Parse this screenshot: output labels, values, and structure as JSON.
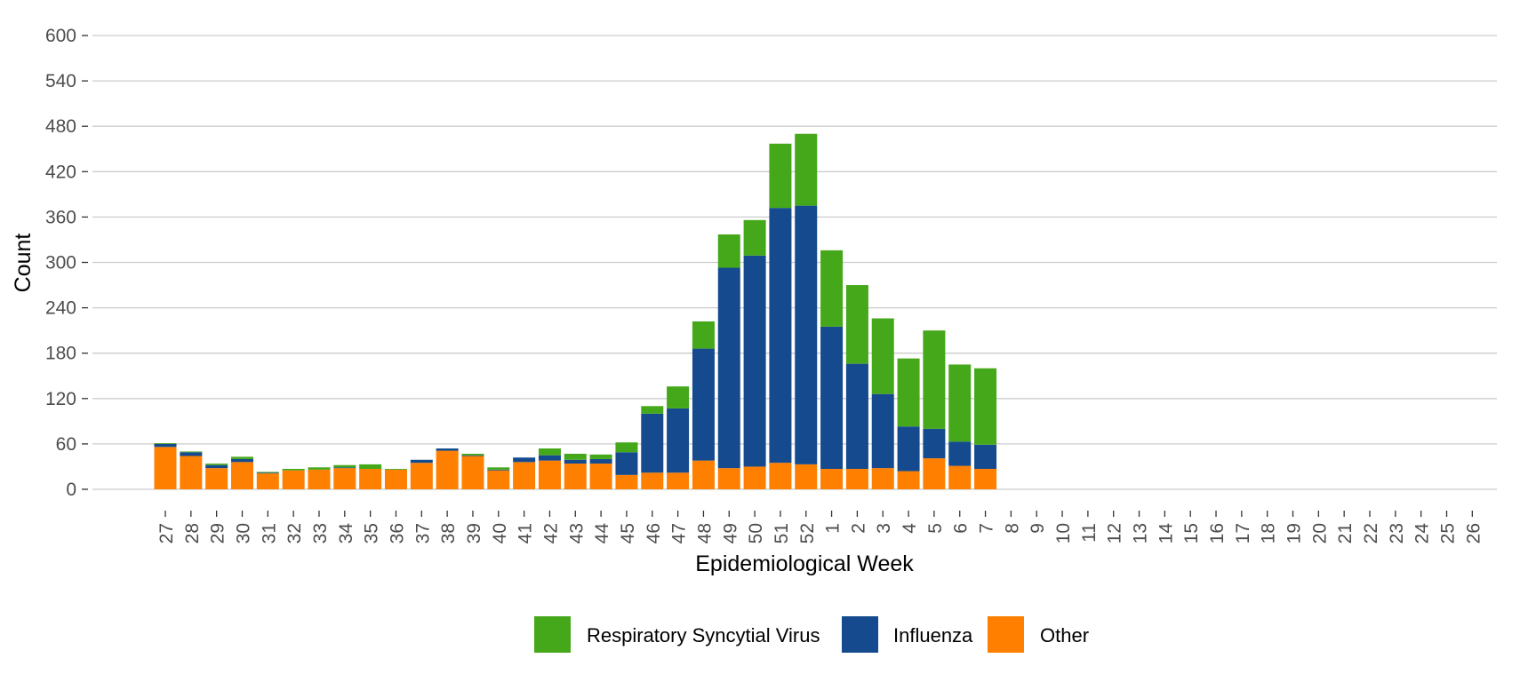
{
  "chart_data": {
    "type": "bar",
    "stacked": true,
    "title": "",
    "xlabel": "Epidemiological Week",
    "ylabel": "Count",
    "ylim": [
      0,
      600
    ],
    "yticks": [
      0,
      60,
      120,
      180,
      240,
      300,
      360,
      420,
      480,
      540,
      600
    ],
    "grid": true,
    "legend_position": "bottom",
    "categories": [
      "27",
      "28",
      "29",
      "30",
      "31",
      "32",
      "33",
      "34",
      "35",
      "36",
      "37",
      "38",
      "39",
      "40",
      "41",
      "42",
      "43",
      "44",
      "45",
      "46",
      "47",
      "48",
      "49",
      "50",
      "51",
      "52",
      "1",
      "2",
      "3",
      "4",
      "5",
      "6",
      "7",
      "8",
      "9",
      "10",
      "11",
      "12",
      "13",
      "14",
      "15",
      "16",
      "17",
      "18",
      "19",
      "20",
      "21",
      "22",
      "23",
      "24",
      "25",
      "26"
    ],
    "series": [
      {
        "name": "Other",
        "color": "#ff7f00",
        "values": [
          56,
          44,
          28,
          36,
          21,
          25,
          26,
          28,
          27,
          26,
          35,
          51,
          44,
          25,
          36,
          38,
          34,
          34,
          19,
          22,
          22,
          38,
          28,
          30,
          35,
          33,
          27,
          27,
          28,
          24,
          41,
          31,
          27,
          null,
          null,
          null,
          null,
          null,
          null,
          null,
          null,
          null,
          null,
          null,
          null,
          null,
          null,
          null,
          null,
          null,
          null,
          null
        ]
      },
      {
        "name": "Influenza",
        "color": "#154a8e",
        "values": [
          4,
          5,
          4,
          4,
          1,
          0,
          0,
          1,
          0,
          0,
          4,
          3,
          1,
          1,
          6,
          7,
          5,
          6,
          30,
          78,
          85,
          148,
          265,
          279,
          337,
          342,
          188,
          139,
          98,
          59,
          39,
          32,
          32,
          null,
          null,
          null,
          null,
          null,
          null,
          null,
          null,
          null,
          null,
          null,
          null,
          null,
          null,
          null,
          null,
          null,
          null,
          null
        ]
      },
      {
        "name": "Respiratory Syncytial Virus",
        "color": "#45a71a",
        "values": [
          1,
          1,
          2,
          3,
          1,
          2,
          3,
          3,
          6,
          1,
          0,
          0,
          2,
          3,
          0,
          9,
          8,
          6,
          13,
          10,
          29,
          36,
          44,
          47,
          85,
          95,
          101,
          104,
          100,
          90,
          130,
          102,
          101,
          null,
          null,
          null,
          null,
          null,
          null,
          null,
          null,
          null,
          null,
          null,
          null,
          null,
          null,
          null,
          null,
          null,
          null,
          null
        ]
      }
    ],
    "legend": [
      "Respiratory Syncytial Virus",
      "Influenza",
      "Other"
    ]
  }
}
